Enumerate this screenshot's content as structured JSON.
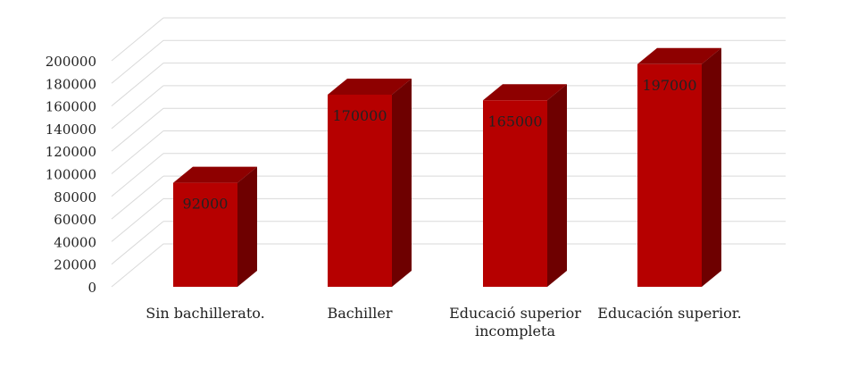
{
  "chart_data": {
    "type": "bar",
    "style": "3d-column",
    "categories": [
      [
        "Sin bachillerato."
      ],
      [
        "Bachiller"
      ],
      [
        "Educació  superior",
        "incompleta"
      ],
      [
        "Educación superior."
      ]
    ],
    "values": [
      92000,
      170000,
      165000,
      197000
    ],
    "data_labels": [
      "92000",
      "170000",
      "165000",
      "197000"
    ],
    "y_ticks": [
      "0",
      "20000",
      "40000",
      "60000",
      "80000",
      "100000",
      "120000",
      "140000",
      "160000",
      "180000",
      "200000"
    ],
    "ylim": [
      0,
      200000
    ],
    "ytick_step": 20000,
    "title": "",
    "xlabel": "",
    "ylabel": "",
    "grid": true,
    "legend": false,
    "colors": {
      "bar_front": "#b60000",
      "bar_top": "#8e0000",
      "bar_side": "#6e0000",
      "grid": "#d9d9d9"
    }
  }
}
